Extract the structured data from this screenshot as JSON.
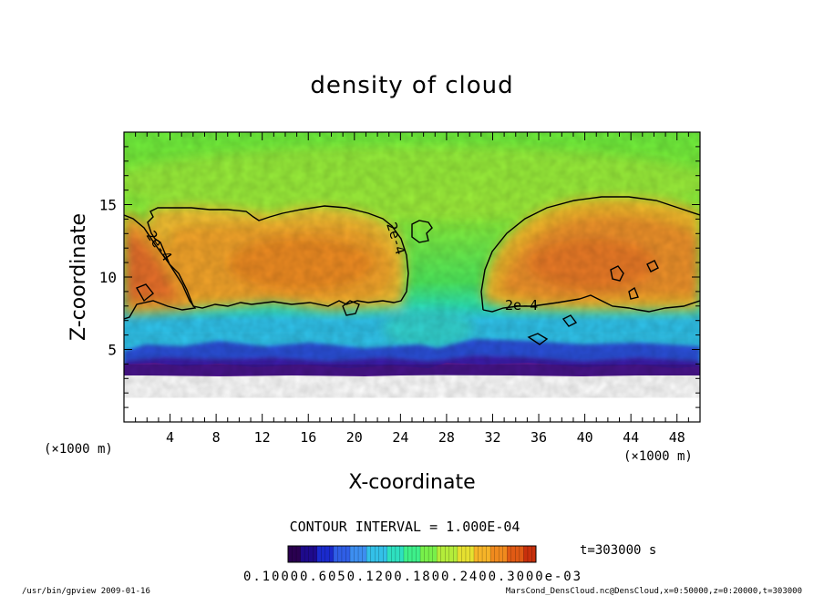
{
  "chart_data": {
    "type": "heatmap",
    "title": "density of cloud",
    "xlabel": "X-coordinate",
    "ylabel": "Z-coordinate",
    "x_unit": "(×1000 m)",
    "y_unit": "(×1000 m)",
    "xlim": [
      0,
      50
    ],
    "ylim": [
      0,
      20
    ],
    "x_ticks": [
      4,
      8,
      12,
      16,
      20,
      24,
      28,
      32,
      36,
      40,
      44,
      48
    ],
    "y_ticks": [
      5,
      10,
      15
    ],
    "contour": {
      "label": "2e-4",
      "interval_text": "CONTOUR INTERVAL = 1.000E-04"
    },
    "colorbar": {
      "tick_text": "0.10000.6050.1200.1800.2400.3000e-03",
      "colors": [
        "#2a0050",
        "#1e0a8c",
        "#1a2acc",
        "#2f5ee6",
        "#3d8ef0",
        "#33c0e8",
        "#2ee0c0",
        "#3ef08a",
        "#78f04a",
        "#b4ec3a",
        "#e6e030",
        "#f6b428",
        "#f08a1e",
        "#e05a14",
        "#c8300c"
      ]
    },
    "time_label": "t=303000 s",
    "grid": false,
    "legend": "bottom-center colorbar"
  },
  "footer": {
    "left": "/usr/bin/gpview  2009-01-16",
    "right": "MarsCond_DensCloud.nc@DensCloud,x=0:50000,z=0:20000,t=303000"
  }
}
